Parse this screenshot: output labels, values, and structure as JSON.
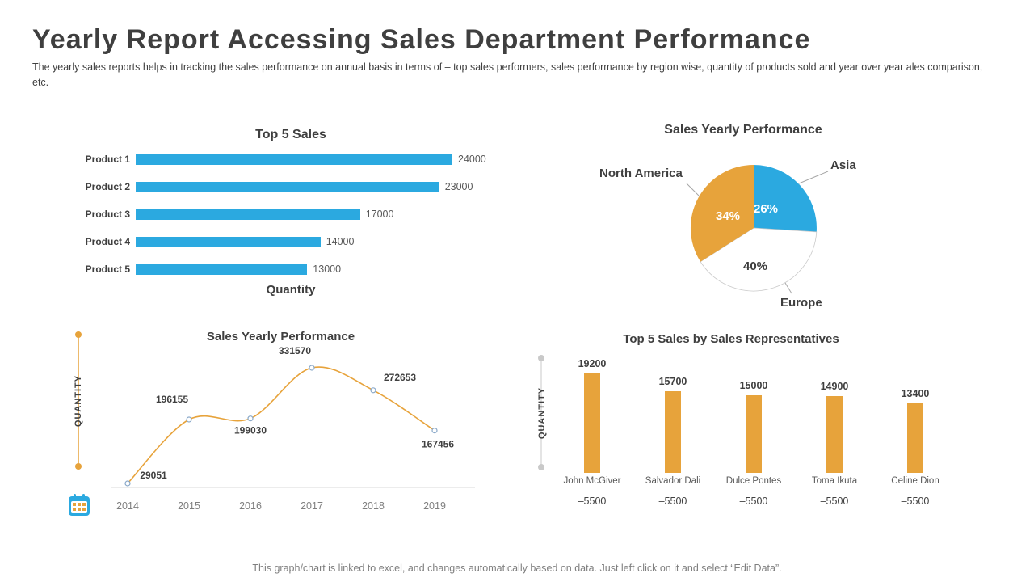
{
  "page": {
    "title": "Yearly Report Accessing Sales Department Performance",
    "subtitle": "The yearly sales reports helps in tracking the sales performance on annual basis in terms of – top sales performers, sales performance by region wise, quantity of products sold and year over year ales comparison, etc.",
    "footer": "This graph/chart is linked to excel, and changes automatically based on data. Just left click on it and select “Edit Data”."
  },
  "colors": {
    "blue": "#2BA9E0",
    "orange": "#E7A33B",
    "dark": "#3F3F3F",
    "gray": "#7F7F7F"
  },
  "icons": {
    "calendar": "calendar-icon"
  },
  "chart_data": [
    {
      "type": "bar",
      "orientation": "horizontal",
      "title": "Top 5 Sales",
      "xlabel": "Quantity",
      "categories": [
        "Product 1",
        "Product 2",
        "Product 3",
        "Product 4",
        "Product 5"
      ],
      "values": [
        24000,
        23000,
        17000,
        14000,
        13000
      ],
      "xlim": [
        0,
        24000
      ],
      "bar_color": "#2BA9E0"
    },
    {
      "type": "pie",
      "title": "Sales Yearly Performance",
      "slices": [
        {
          "label": "Asia",
          "value": 26,
          "pct_label": "26%",
          "color": "#2BA9E0",
          "pct_color": "#FFFFFF"
        },
        {
          "label": "Europe",
          "value": 40,
          "pct_label": "40%",
          "color": "#FFFFFF",
          "pct_color": "#3F3F3F"
        },
        {
          "label": "North America",
          "value": 34,
          "pct_label": "34%",
          "color": "#E7A33B",
          "pct_color": "#FFFFFF"
        }
      ]
    },
    {
      "type": "line",
      "title": "Sales Yearly Performance",
      "ylabel": "QUANTITY",
      "x": [
        2014,
        2015,
        2016,
        2017,
        2018,
        2019
      ],
      "values": [
        29051,
        196155,
        199030,
        331570,
        272653,
        167456
      ],
      "line_color": "#E7A33B"
    },
    {
      "type": "bar",
      "orientation": "vertical",
      "title": "Top 5 Sales by Sales Representatives",
      "ylabel": "QUANTITY",
      "categories": [
        "John McGiver",
        "Salvador Dali",
        "Dulce Pontes",
        "Toma Ikuta",
        "Celine Dion"
      ],
      "sub_labels": [
        "–5500",
        "–5500",
        "–5500",
        "–5500",
        "–5500"
      ],
      "values": [
        19200,
        15700,
        15000,
        14900,
        13400
      ],
      "bar_color": "#E7A33B"
    }
  ]
}
